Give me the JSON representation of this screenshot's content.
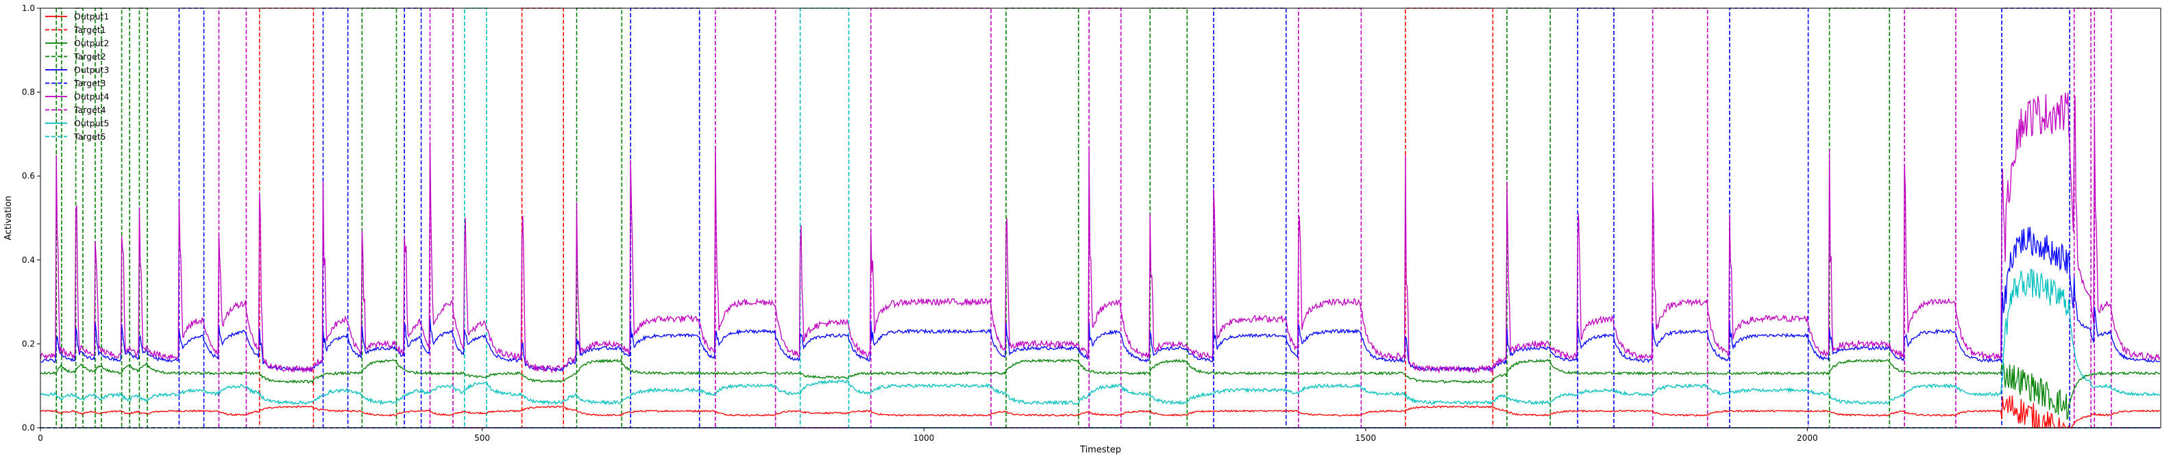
{
  "chart_data": {
    "type": "line",
    "title": "",
    "xlabel": "Timestep",
    "ylabel": "Activation",
    "xlim": [
      0,
      2400
    ],
    "ylim": [
      0,
      1.0
    ],
    "xticks": [
      0,
      500,
      1000,
      1500,
      2000
    ],
    "yticks": [
      0.0,
      0.2,
      0.4,
      0.6,
      0.8,
      1.0
    ],
    "xtick_labels": [
      "0",
      "500",
      "1000",
      "1500",
      "2000"
    ],
    "ytick_labels": [
      "0.0",
      "0.2",
      "0.4",
      "0.6",
      "0.8",
      "1.0"
    ],
    "grid": false,
    "legend_position": "top-left",
    "colors": {
      "1": "#ff0000",
      "2": "#008000",
      "3": "#0000ff",
      "4": "#bf00bf",
      "5": "#00bfbf"
    },
    "series": [
      {
        "name": "Output1",
        "class": 1,
        "style": "solid"
      },
      {
        "name": "Target1",
        "class": 1,
        "style": "dashed"
      },
      {
        "name": "Output2",
        "class": 2,
        "style": "solid"
      },
      {
        "name": "Target2",
        "class": 2,
        "style": "dashed"
      },
      {
        "name": "Output3",
        "class": 3,
        "style": "solid"
      },
      {
        "name": "Target3",
        "class": 3,
        "style": "dashed"
      },
      {
        "name": "Output4",
        "class": 4,
        "style": "solid"
      },
      {
        "name": "Target4",
        "class": 4,
        "style": "dashed"
      },
      {
        "name": "Output5",
        "class": 5,
        "style": "solid"
      },
      {
        "name": "Target5",
        "class": 5,
        "style": "dashed"
      }
    ],
    "target_intervals": [
      [
        2,
        18,
        2
      ],
      [
        2,
        40,
        2
      ],
      [
        2,
        62,
        2
      ],
      [
        2,
        92,
        2
      ],
      [
        2,
        112,
        2
      ],
      [
        3,
        157,
        3
      ],
      [
        4,
        202,
        4
      ],
      [
        1,
        248,
        1
      ],
      [
        3,
        320,
        3
      ],
      [
        2,
        364,
        2
      ],
      [
        3,
        412,
        3
      ],
      [
        4,
        441,
        4
      ],
      [
        5,
        480,
        5
      ],
      [
        1,
        545,
        1
      ],
      [
        2,
        607,
        2
      ],
      [
        3,
        668,
        3
      ],
      [
        4,
        764,
        4
      ],
      [
        5,
        860,
        5
      ],
      [
        4,
        940,
        4
      ],
      [
        2,
        1093,
        2
      ],
      [
        4,
        1187,
        4
      ],
      [
        2,
        1256,
        2
      ],
      [
        3,
        1328,
        3
      ],
      [
        4,
        1424,
        4
      ],
      [
        1,
        1545,
        1
      ],
      [
        2,
        1660,
        2
      ],
      [
        3,
        1740,
        3
      ],
      [
        4,
        1825,
        4
      ],
      [
        3,
        1912,
        3
      ],
      [
        2,
        2025,
        2
      ],
      [
        4,
        2110,
        4
      ],
      [
        3,
        2220,
        3
      ],
      [
        4,
        2302,
        4
      ],
      [
        4,
        2325,
        4
      ]
    ],
    "target_spans": [
      [
        2,
        18,
        23
      ],
      [
        2,
        40,
        47
      ],
      [
        2,
        62,
        68
      ],
      [
        2,
        92,
        100
      ],
      [
        2,
        112,
        120
      ],
      [
        3,
        157,
        184
      ],
      [
        4,
        202,
        232
      ],
      [
        1,
        248,
        308
      ],
      [
        3,
        320,
        347
      ],
      [
        2,
        364,
        402
      ],
      [
        3,
        412,
        430
      ],
      [
        4,
        441,
        466
      ],
      [
        5,
        480,
        504
      ],
      [
        1,
        545,
        591
      ],
      [
        2,
        607,
        657
      ],
      [
        3,
        668,
        745
      ],
      [
        4,
        764,
        831
      ],
      [
        5,
        860,
        914
      ],
      [
        4,
        940,
        1075
      ],
      [
        2,
        1093,
        1174
      ],
      [
        4,
        1187,
        1222
      ],
      [
        2,
        1256,
        1297
      ],
      [
        3,
        1328,
        1409
      ],
      [
        4,
        1424,
        1494
      ],
      [
        1,
        1545,
        1643
      ],
      [
        2,
        1660,
        1708
      ],
      [
        3,
        1740,
        1780
      ],
      [
        4,
        1825,
        1886
      ],
      [
        3,
        1912,
        2000
      ],
      [
        2,
        2025,
        2092
      ],
      [
        4,
        2110,
        2167
      ],
      [
        3,
        2220,
        2296
      ],
      [
        4,
        2302,
        2320
      ],
      [
        4,
        2325,
        2343
      ]
    ]
  }
}
